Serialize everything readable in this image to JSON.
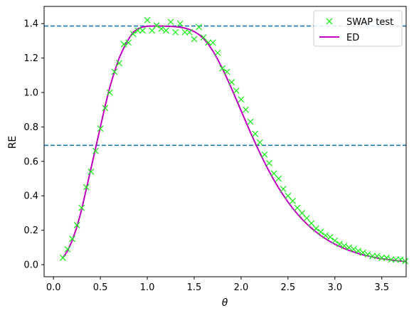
{
  "chart_data": {
    "type": "scatter",
    "title": "",
    "xlabel": "θ",
    "ylabel": "RE",
    "xlim": [
      -0.1,
      3.76
    ],
    "ylim": [
      -0.07,
      1.5
    ],
    "grid": false,
    "legend_placement": "top-right",
    "x_ticks": [
      0.0,
      0.5,
      1.0,
      1.5,
      2.0,
      2.5,
      3.0,
      3.5
    ],
    "x_tick_labels": [
      "0.0",
      "0.5",
      "1.0",
      "1.5",
      "2.0",
      "2.5",
      "3.0",
      "3.5"
    ],
    "y_ticks": [
      0.0,
      0.2,
      0.4,
      0.6,
      0.8,
      1.0,
      1.2,
      1.4
    ],
    "y_tick_labels": [
      "0.0",
      "0.2",
      "0.4",
      "0.6",
      "0.8",
      "1.0",
      "1.2",
      "1.4"
    ],
    "hlines": [
      {
        "y": 1.386,
        "color": "#1f77b4",
        "style": "dashed"
      },
      {
        "y": 0.693,
        "color": "#1f77b4",
        "style": "dashed"
      }
    ],
    "series": [
      {
        "name": "SWAP test",
        "kind": "scatter",
        "marker": "x",
        "color": "#22ee22",
        "x": [
          0.1,
          0.15,
          0.2,
          0.25,
          0.3,
          0.35,
          0.4,
          0.45,
          0.5,
          0.55,
          0.6,
          0.65,
          0.7,
          0.75,
          0.8,
          0.85,
          0.9,
          0.95,
          1.0,
          1.05,
          1.1,
          1.15,
          1.2,
          1.25,
          1.3,
          1.35,
          1.4,
          1.45,
          1.5,
          1.55,
          1.6,
          1.65,
          1.7,
          1.75,
          1.8,
          1.85,
          1.9,
          1.95,
          2.0,
          2.05,
          2.1,
          2.15,
          2.2,
          2.25,
          2.3,
          2.35,
          2.4,
          2.45,
          2.5,
          2.55,
          2.6,
          2.65,
          2.7,
          2.75,
          2.8,
          2.85,
          2.9,
          2.95,
          3.0,
          3.05,
          3.1,
          3.15,
          3.2,
          3.25,
          3.3,
          3.35,
          3.4,
          3.45,
          3.5,
          3.55,
          3.6,
          3.65,
          3.7,
          3.75
        ],
        "y": [
          0.04,
          0.09,
          0.15,
          0.23,
          0.33,
          0.45,
          0.54,
          0.66,
          0.79,
          0.91,
          1.0,
          1.12,
          1.17,
          1.28,
          1.29,
          1.34,
          1.36,
          1.36,
          1.42,
          1.36,
          1.39,
          1.37,
          1.36,
          1.41,
          1.35,
          1.4,
          1.35,
          1.35,
          1.31,
          1.38,
          1.32,
          1.29,
          1.29,
          1.23,
          1.14,
          1.12,
          1.06,
          1.01,
          0.96,
          0.9,
          0.83,
          0.76,
          0.71,
          0.64,
          0.59,
          0.53,
          0.5,
          0.44,
          0.4,
          0.37,
          0.33,
          0.3,
          0.27,
          0.24,
          0.21,
          0.19,
          0.17,
          0.16,
          0.14,
          0.12,
          0.11,
          0.1,
          0.09,
          0.08,
          0.07,
          0.06,
          0.05,
          0.05,
          0.04,
          0.04,
          0.03,
          0.03,
          0.03,
          0.02
        ]
      },
      {
        "name": "ED",
        "kind": "line",
        "color": "#c000c0",
        "x": [
          0.1,
          0.15,
          0.2,
          0.25,
          0.3,
          0.35,
          0.4,
          0.45,
          0.5,
          0.55,
          0.6,
          0.65,
          0.7,
          0.75,
          0.8,
          0.85,
          0.9,
          0.95,
          1.0,
          1.05,
          1.1,
          1.15,
          1.2,
          1.25,
          1.3,
          1.35,
          1.4,
          1.45,
          1.5,
          1.55,
          1.6,
          1.65,
          1.7,
          1.75,
          1.8,
          1.85,
          1.9,
          1.95,
          2.0,
          2.05,
          2.1,
          2.15,
          2.2,
          2.25,
          2.3,
          2.35,
          2.4,
          2.45,
          2.5,
          2.55,
          2.6,
          2.65,
          2.7,
          2.75,
          2.8,
          2.85,
          2.9,
          2.95,
          3.0,
          3.05,
          3.1,
          3.15,
          3.2,
          3.25,
          3.3,
          3.35,
          3.4,
          3.45,
          3.5,
          3.55,
          3.6,
          3.65,
          3.7,
          3.75
        ],
        "y": [
          0.04,
          0.08,
          0.14,
          0.22,
          0.32,
          0.44,
          0.56,
          0.68,
          0.8,
          0.92,
          1.03,
          1.12,
          1.2,
          1.26,
          1.31,
          1.35,
          1.37,
          1.38,
          1.385,
          1.386,
          1.386,
          1.386,
          1.385,
          1.384,
          1.382,
          1.379,
          1.374,
          1.366,
          1.354,
          1.337,
          1.313,
          1.281,
          1.241,
          1.193,
          1.14,
          1.082,
          1.021,
          0.958,
          0.894,
          0.831,
          0.768,
          0.708,
          0.649,
          0.594,
          0.541,
          0.492,
          0.446,
          0.404,
          0.364,
          0.328,
          0.295,
          0.265,
          0.237,
          0.212,
          0.19,
          0.169,
          0.151,
          0.134,
          0.119,
          0.106,
          0.094,
          0.083,
          0.074,
          0.065,
          0.057,
          0.051,
          0.045,
          0.039,
          0.035,
          0.031,
          0.027,
          0.024,
          0.021,
          0.018
        ]
      }
    ]
  }
}
